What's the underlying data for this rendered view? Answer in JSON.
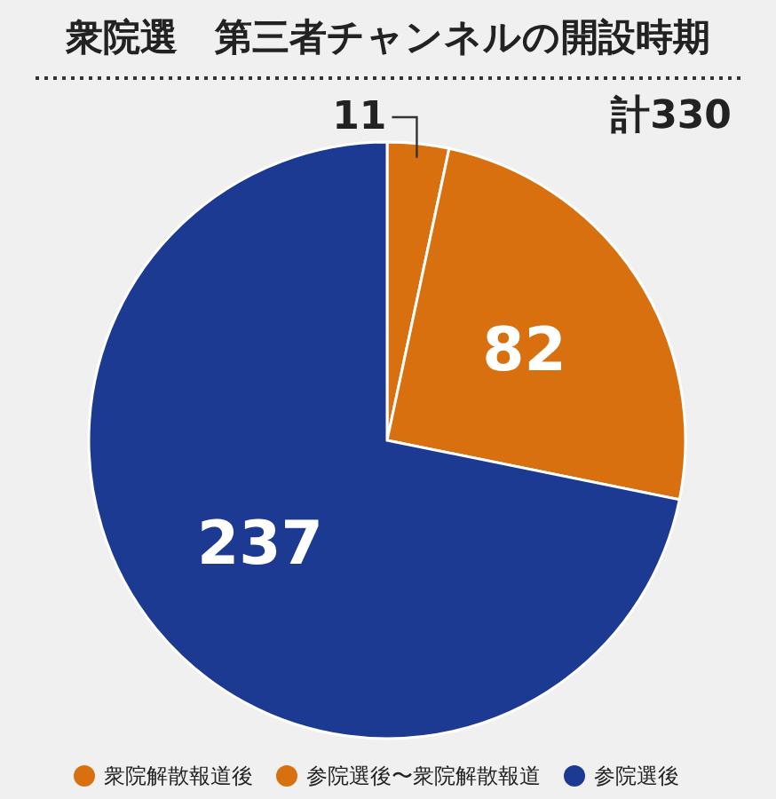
{
  "chart_data": {
    "type": "pie",
    "title": "衆院選　第三者チャンネルの開設時期",
    "categories": [
      "衆院解散報道後",
      "参院選後〜衆院解散報道",
      "参院選後"
    ],
    "values": [
      11,
      82,
      237
    ],
    "colors": [
      "#d9700f",
      "#d9700f",
      "#1d3a92"
    ],
    "data_labels": true,
    "legend": "bottom",
    "annotations": [
      "計330"
    ]
  }
}
